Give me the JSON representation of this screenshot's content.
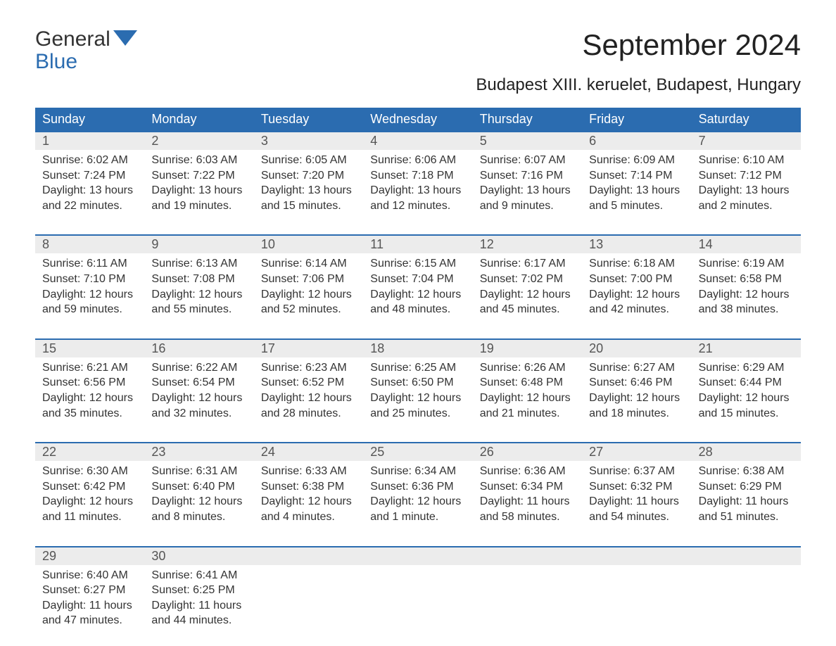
{
  "logo": {
    "top": "General",
    "bottom": "Blue",
    "icon_fill": "#2b6cb0"
  },
  "header": {
    "title": "September 2024",
    "subtitle": "Budapest XIII. keruelet, Budapest, Hungary"
  },
  "colors": {
    "header_bg": "#2b6cb0",
    "header_text": "#ffffff",
    "daynum_bg": "#ececec",
    "daynum_text": "#555555",
    "body_text": "#333333",
    "rule": "#2b6cb0",
    "page_bg": "#ffffff"
  },
  "typography": {
    "title_fontsize": 42,
    "subtitle_fontsize": 24,
    "dow_fontsize": 18,
    "daynum_fontsize": 18,
    "cell_fontsize": 16,
    "logo_fontsize": 30
  },
  "layout": {
    "columns": 7,
    "rows": 5,
    "cell_padding": 10
  },
  "days_of_week": [
    "Sunday",
    "Monday",
    "Tuesday",
    "Wednesday",
    "Thursday",
    "Friday",
    "Saturday"
  ],
  "weeks": [
    [
      {
        "n": "1",
        "sunrise": "Sunrise: 6:02 AM",
        "sunset": "Sunset: 7:24 PM",
        "d1": "Daylight: 13 hours",
        "d2": "and 22 minutes."
      },
      {
        "n": "2",
        "sunrise": "Sunrise: 6:03 AM",
        "sunset": "Sunset: 7:22 PM",
        "d1": "Daylight: 13 hours",
        "d2": "and 19 minutes."
      },
      {
        "n": "3",
        "sunrise": "Sunrise: 6:05 AM",
        "sunset": "Sunset: 7:20 PM",
        "d1": "Daylight: 13 hours",
        "d2": "and 15 minutes."
      },
      {
        "n": "4",
        "sunrise": "Sunrise: 6:06 AM",
        "sunset": "Sunset: 7:18 PM",
        "d1": "Daylight: 13 hours",
        "d2": "and 12 minutes."
      },
      {
        "n": "5",
        "sunrise": "Sunrise: 6:07 AM",
        "sunset": "Sunset: 7:16 PM",
        "d1": "Daylight: 13 hours",
        "d2": "and 9 minutes."
      },
      {
        "n": "6",
        "sunrise": "Sunrise: 6:09 AM",
        "sunset": "Sunset: 7:14 PM",
        "d1": "Daylight: 13 hours",
        "d2": "and 5 minutes."
      },
      {
        "n": "7",
        "sunrise": "Sunrise: 6:10 AM",
        "sunset": "Sunset: 7:12 PM",
        "d1": "Daylight: 13 hours",
        "d2": "and 2 minutes."
      }
    ],
    [
      {
        "n": "8",
        "sunrise": "Sunrise: 6:11 AM",
        "sunset": "Sunset: 7:10 PM",
        "d1": "Daylight: 12 hours",
        "d2": "and 59 minutes."
      },
      {
        "n": "9",
        "sunrise": "Sunrise: 6:13 AM",
        "sunset": "Sunset: 7:08 PM",
        "d1": "Daylight: 12 hours",
        "d2": "and 55 minutes."
      },
      {
        "n": "10",
        "sunrise": "Sunrise: 6:14 AM",
        "sunset": "Sunset: 7:06 PM",
        "d1": "Daylight: 12 hours",
        "d2": "and 52 minutes."
      },
      {
        "n": "11",
        "sunrise": "Sunrise: 6:15 AM",
        "sunset": "Sunset: 7:04 PM",
        "d1": "Daylight: 12 hours",
        "d2": "and 48 minutes."
      },
      {
        "n": "12",
        "sunrise": "Sunrise: 6:17 AM",
        "sunset": "Sunset: 7:02 PM",
        "d1": "Daylight: 12 hours",
        "d2": "and 45 minutes."
      },
      {
        "n": "13",
        "sunrise": "Sunrise: 6:18 AM",
        "sunset": "Sunset: 7:00 PM",
        "d1": "Daylight: 12 hours",
        "d2": "and 42 minutes."
      },
      {
        "n": "14",
        "sunrise": "Sunrise: 6:19 AM",
        "sunset": "Sunset: 6:58 PM",
        "d1": "Daylight: 12 hours",
        "d2": "and 38 minutes."
      }
    ],
    [
      {
        "n": "15",
        "sunrise": "Sunrise: 6:21 AM",
        "sunset": "Sunset: 6:56 PM",
        "d1": "Daylight: 12 hours",
        "d2": "and 35 minutes."
      },
      {
        "n": "16",
        "sunrise": "Sunrise: 6:22 AM",
        "sunset": "Sunset: 6:54 PM",
        "d1": "Daylight: 12 hours",
        "d2": "and 32 minutes."
      },
      {
        "n": "17",
        "sunrise": "Sunrise: 6:23 AM",
        "sunset": "Sunset: 6:52 PM",
        "d1": "Daylight: 12 hours",
        "d2": "and 28 minutes."
      },
      {
        "n": "18",
        "sunrise": "Sunrise: 6:25 AM",
        "sunset": "Sunset: 6:50 PM",
        "d1": "Daylight: 12 hours",
        "d2": "and 25 minutes."
      },
      {
        "n": "19",
        "sunrise": "Sunrise: 6:26 AM",
        "sunset": "Sunset: 6:48 PM",
        "d1": "Daylight: 12 hours",
        "d2": "and 21 minutes."
      },
      {
        "n": "20",
        "sunrise": "Sunrise: 6:27 AM",
        "sunset": "Sunset: 6:46 PM",
        "d1": "Daylight: 12 hours",
        "d2": "and 18 minutes."
      },
      {
        "n": "21",
        "sunrise": "Sunrise: 6:29 AM",
        "sunset": "Sunset: 6:44 PM",
        "d1": "Daylight: 12 hours",
        "d2": "and 15 minutes."
      }
    ],
    [
      {
        "n": "22",
        "sunrise": "Sunrise: 6:30 AM",
        "sunset": "Sunset: 6:42 PM",
        "d1": "Daylight: 12 hours",
        "d2": "and 11 minutes."
      },
      {
        "n": "23",
        "sunrise": "Sunrise: 6:31 AM",
        "sunset": "Sunset: 6:40 PM",
        "d1": "Daylight: 12 hours",
        "d2": "and 8 minutes."
      },
      {
        "n": "24",
        "sunrise": "Sunrise: 6:33 AM",
        "sunset": "Sunset: 6:38 PM",
        "d1": "Daylight: 12 hours",
        "d2": "and 4 minutes."
      },
      {
        "n": "25",
        "sunrise": "Sunrise: 6:34 AM",
        "sunset": "Sunset: 6:36 PM",
        "d1": "Daylight: 12 hours",
        "d2": "and 1 minute."
      },
      {
        "n": "26",
        "sunrise": "Sunrise: 6:36 AM",
        "sunset": "Sunset: 6:34 PM",
        "d1": "Daylight: 11 hours",
        "d2": "and 58 minutes."
      },
      {
        "n": "27",
        "sunrise": "Sunrise: 6:37 AM",
        "sunset": "Sunset: 6:32 PM",
        "d1": "Daylight: 11 hours",
        "d2": "and 54 minutes."
      },
      {
        "n": "28",
        "sunrise": "Sunrise: 6:38 AM",
        "sunset": "Sunset: 6:29 PM",
        "d1": "Daylight: 11 hours",
        "d2": "and 51 minutes."
      }
    ],
    [
      {
        "n": "29",
        "sunrise": "Sunrise: 6:40 AM",
        "sunset": "Sunset: 6:27 PM",
        "d1": "Daylight: 11 hours",
        "d2": "and 47 minutes."
      },
      {
        "n": "30",
        "sunrise": "Sunrise: 6:41 AM",
        "sunset": "Sunset: 6:25 PM",
        "d1": "Daylight: 11 hours",
        "d2": "and 44 minutes."
      },
      null,
      null,
      null,
      null,
      null
    ]
  ]
}
